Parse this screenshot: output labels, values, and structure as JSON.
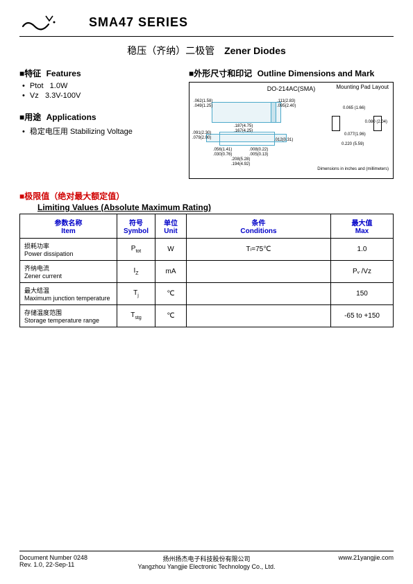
{
  "header": {
    "title": "SMA47 SERIES"
  },
  "subtitle": {
    "cn": "稳压（齐纳）二极管",
    "en": "Zener Diodes"
  },
  "features": {
    "head_cn": "■特征",
    "head_en": "Features",
    "items": [
      {
        "sym": "P",
        "sub": "tot",
        "val": "1.0W"
      },
      {
        "sym": "V",
        "sub": "z",
        "val": "3.3V-100V"
      }
    ]
  },
  "applications": {
    "head_cn": "■用途",
    "head_en": "Applications",
    "item_cn": "稳定电压用",
    "item_en": "Stabilizing Voltage"
  },
  "outline": {
    "head_cn": "■外形尺寸和印记",
    "head_en": "Outline Dimensions and Mark",
    "pkg": "DO-214AC(SMA)",
    "pad_label": "Mounting Pad Layout",
    "dim_note": "Dimensions in inches and (millimeters)",
    "dims": {
      "d1": ".062(1.58)",
      "d1b": ".049(1.25)",
      "d2": ".111(2.83)",
      "d2b": ".095(2.40)",
      "d3": ".187(4.75)",
      "d3b": ".167(4.25)",
      "d4": ".091(2.30)",
      "d4b": ".079(2.00)",
      "d5": ".056(1.41)",
      "d5b": ".030(0.76)",
      "d6": ".008(0.22)",
      "d6b": ".005(0.13)",
      "d7": ".208(5.28)",
      "d7b": ".194(4.92)",
      "d8": ".012(0.31)",
      "p1": "0.065 (1.66)",
      "p2": "0.080 (2.04)",
      "p3": "0.077(1.96)",
      "p4": "0.220 (5.59)"
    }
  },
  "limits": {
    "head_cn": "■极限值（绝对最大额定值）",
    "head_en": "Limiting Values (Absolute Maximum Rating)",
    "columns": {
      "item_cn": "参数名称",
      "item_en": "Item",
      "sym_cn": "符号",
      "sym_en": "Symbol",
      "unit_cn": "单位",
      "unit_en": "Unit",
      "cond_cn": "条件",
      "cond_en": "Conditions",
      "max_cn": "最大值",
      "max_en": "Max"
    },
    "rows": [
      {
        "item_cn": "损耗功率",
        "item_en": "Power dissipation",
        "sym": "P",
        "sym_sub": "tot",
        "unit": "W",
        "cond": "Tₗ=75℃",
        "max": "1.0"
      },
      {
        "item_cn": "齐纳电流",
        "item_en": "Zener current",
        "sym": "I",
        "sym_sub": "Z",
        "unit": "mA",
        "cond": "",
        "max": "Pᵥ /Vz"
      },
      {
        "item_cn": "最大结温",
        "item_en": "Maximum junction temperature",
        "sym": "T",
        "sym_sub": "j",
        "unit": "℃",
        "cond": "",
        "max": "150"
      },
      {
        "item_cn": "存储温度范围",
        "item_en": "Storage temperature range",
        "sym": "T",
        "sym_sub": "stg",
        "unit": "℃",
        "cond": "",
        "max": "-65 to +150"
      }
    ]
  },
  "footer": {
    "doc": "Document Number 0248",
    "rev": "Rev. 1.0, 22-Sep-11",
    "company_cn": "扬州扬杰电子科技股份有限公司",
    "company_en": "Yangzhou Yangjie Electronic Technology Co., Ltd.",
    "url": "www.21yangjie.com"
  }
}
